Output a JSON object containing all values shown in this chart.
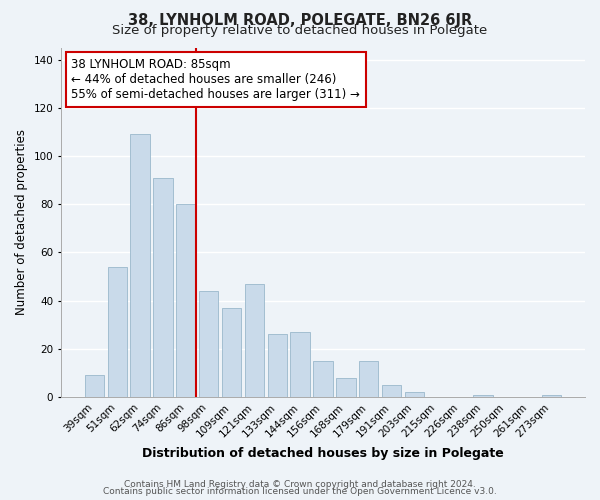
{
  "title": "38, LYNHOLM ROAD, POLEGATE, BN26 6JR",
  "subtitle": "Size of property relative to detached houses in Polegate",
  "xlabel": "Distribution of detached houses by size in Polegate",
  "ylabel": "Number of detached properties",
  "categories": [
    "39sqm",
    "51sqm",
    "62sqm",
    "74sqm",
    "86sqm",
    "98sqm",
    "109sqm",
    "121sqm",
    "133sqm",
    "144sqm",
    "156sqm",
    "168sqm",
    "179sqm",
    "191sqm",
    "203sqm",
    "215sqm",
    "226sqm",
    "238sqm",
    "250sqm",
    "261sqm",
    "273sqm"
  ],
  "values": [
    9,
    54,
    109,
    91,
    80,
    44,
    37,
    47,
    26,
    27,
    15,
    8,
    15,
    5,
    2,
    0,
    0,
    1,
    0,
    0,
    1
  ],
  "bar_color": "#c9daea",
  "bar_edge_color": "#9ab8cc",
  "vline_color": "#cc0000",
  "annotation_text": "38 LYNHOLM ROAD: 85sqm\n← 44% of detached houses are smaller (246)\n55% of semi-detached houses are larger (311) →",
  "annotation_box_color": "#ffffff",
  "annotation_box_edge": "#cc0000",
  "ylim": [
    0,
    145
  ],
  "yticks": [
    0,
    20,
    40,
    60,
    80,
    100,
    120,
    140
  ],
  "footer_line1": "Contains HM Land Registry data © Crown copyright and database right 2024.",
  "footer_line2": "Contains public sector information licensed under the Open Government Licence v3.0.",
  "background_color": "#eef3f8",
  "grid_color": "#ffffff",
  "title_fontsize": 10.5,
  "subtitle_fontsize": 9.5,
  "xlabel_fontsize": 9,
  "ylabel_fontsize": 8.5,
  "tick_fontsize": 7.5,
  "annotation_fontsize": 8.5,
  "footer_fontsize": 6.5,
  "vline_bar_index": 4
}
